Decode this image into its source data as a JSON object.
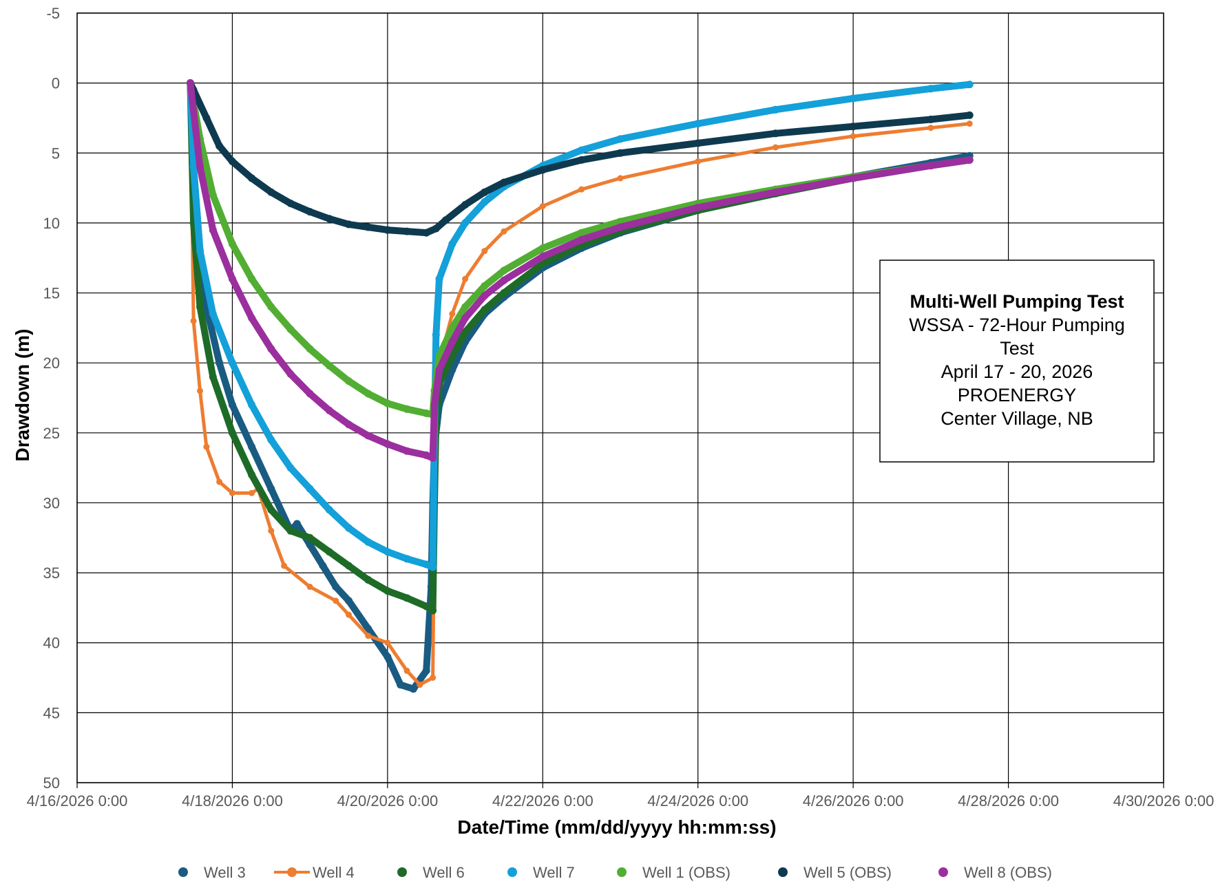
{
  "chart_data": {
    "type": "line",
    "xlabel": "Date/Time (mm/dd/yyyy hh:mm:ss)",
    "ylabel": "Drawdown (m)",
    "x_ticks": [
      "4/16/2026 0:00",
      "4/18/2026 0:00",
      "4/20/2026 0:00",
      "4/22/2026 0:00",
      "4/24/2026 0:00",
      "4/26/2026 0:00",
      "4/28/2026 0:00",
      "4/30/2026 0:00"
    ],
    "xlim": [
      "2026-04-16T00:00",
      "2026-04-30T00:00"
    ],
    "y_ticks": [
      "-5",
      "0",
      "5",
      "10",
      "15",
      "20",
      "25",
      "30",
      "35",
      "40",
      "45",
      "50"
    ],
    "ylim": [
      -5,
      50
    ],
    "y_inverted": true,
    "grid": true,
    "legend_position": "bottom",
    "annotation": {
      "title": "Multi-Well Pumping Test",
      "lines": [
        "WSSA - 72-Hour Pumping",
        "Test",
        "April 17 - 20, 2026",
        "PROENERGY",
        "Center Village, NB"
      ]
    },
    "series": [
      {
        "name": "Well 3",
        "color": "#1a5b82",
        "marker": "circle",
        "x": [
          "2026-04-17T11:00",
          "2026-04-17T12:00",
          "2026-04-17T14:00",
          "2026-04-17T16:00",
          "2026-04-17T20:00",
          "2026-04-18T00:00",
          "2026-04-18T06:00",
          "2026-04-18T12:00",
          "2026-04-18T18:00",
          "2026-04-18T20:00",
          "2026-04-19T00:00",
          "2026-04-19T04:00",
          "2026-04-19T08:00",
          "2026-04-19T12:00",
          "2026-04-19T18:00",
          "2026-04-20T00:00",
          "2026-04-20T04:00",
          "2026-04-20T08:00",
          "2026-04-20T12:00",
          "2026-04-20T13:30",
          "2026-04-20T14:00",
          "2026-04-20T14:30",
          "2026-04-20T16:00",
          "2026-04-20T20:00",
          "2026-04-21T00:00",
          "2026-04-21T06:00",
          "2026-04-21T12:00",
          "2026-04-22T00:00",
          "2026-04-22T12:00",
          "2026-04-23T00:00",
          "2026-04-24T00:00",
          "2026-04-25T00:00",
          "2026-04-26T00:00",
          "2026-04-27T00:00",
          "2026-04-27T12:00"
        ],
        "y": [
          0,
          6,
          12,
          16,
          20,
          23,
          26,
          29,
          32,
          31.5,
          33,
          34.5,
          36,
          37,
          39,
          41,
          43,
          43.3,
          42,
          36,
          30,
          26,
          23,
          20.5,
          18.5,
          16.5,
          15.3,
          13.2,
          11.8,
          10.7,
          9.1,
          7.8,
          6.7,
          5.7,
          5.2
        ]
      },
      {
        "name": "Well 4",
        "color": "#ed7d31",
        "marker": "circle",
        "x": [
          "2026-04-17T11:00",
          "2026-04-17T12:00",
          "2026-04-17T14:00",
          "2026-04-17T16:00",
          "2026-04-17T20:00",
          "2026-04-18T00:00",
          "2026-04-18T06:00",
          "2026-04-18T08:00",
          "2026-04-18T12:00",
          "2026-04-18T16:00",
          "2026-04-19T00:00",
          "2026-04-19T08:00",
          "2026-04-19T12:00",
          "2026-04-19T18:00",
          "2026-04-20T00:00",
          "2026-04-20T06:00",
          "2026-04-20T10:00",
          "2026-04-20T14:00",
          "2026-04-20T14:30",
          "2026-04-20T15:00",
          "2026-04-20T16:00",
          "2026-04-20T20:00",
          "2026-04-21T00:00",
          "2026-04-21T06:00",
          "2026-04-21T12:00",
          "2026-04-22T00:00",
          "2026-04-22T12:00",
          "2026-04-23T00:00",
          "2026-04-24T00:00",
          "2026-04-25T00:00",
          "2026-04-26T00:00",
          "2026-04-27T00:00",
          "2026-04-27T12:00"
        ],
        "y": [
          0,
          17,
          22,
          26,
          28.5,
          29.3,
          29.3,
          29,
          32,
          34.5,
          36,
          37,
          38,
          39.5,
          40,
          42,
          43,
          42.5,
          30,
          24,
          20,
          16.5,
          14,
          12,
          10.6,
          8.8,
          7.6,
          6.8,
          5.6,
          4.6,
          3.8,
          3.2,
          2.9
        ]
      },
      {
        "name": "Well 6",
        "color": "#1e6b28",
        "marker": "circle",
        "x": [
          "2026-04-17T11:00",
          "2026-04-17T12:00",
          "2026-04-17T14:00",
          "2026-04-17T18:00",
          "2026-04-18T00:00",
          "2026-04-18T06:00",
          "2026-04-18T12:00",
          "2026-04-18T18:00",
          "2026-04-19T00:00",
          "2026-04-19T06:00",
          "2026-04-19T12:00",
          "2026-04-19T18:00",
          "2026-04-20T00:00",
          "2026-04-20T06:00",
          "2026-04-20T12:00",
          "2026-04-20T14:00",
          "2026-04-20T14:30",
          "2026-04-20T15:00",
          "2026-04-20T16:00",
          "2026-04-20T20:00",
          "2026-04-21T00:00",
          "2026-04-21T06:00",
          "2026-04-21T12:00",
          "2026-04-22T00:00",
          "2026-04-22T12:00",
          "2026-04-23T00:00",
          "2026-04-24T00:00",
          "2026-04-25T00:00",
          "2026-04-26T00:00",
          "2026-04-27T00:00",
          "2026-04-27T12:00"
        ],
        "y": [
          0,
          10,
          16,
          21,
          25,
          28,
          30.5,
          32,
          32.5,
          33.5,
          34.5,
          35.5,
          36.3,
          36.8,
          37.4,
          37.7,
          30,
          24,
          21.5,
          19.5,
          17.8,
          16.2,
          15,
          12.9,
          11.6,
          10.6,
          9.1,
          7.9,
          6.8,
          5.9,
          5.5
        ]
      },
      {
        "name": "Well 7",
        "color": "#14a0d9",
        "marker": "circle",
        "x": [
          "2026-04-17T11:00",
          "2026-04-17T12:00",
          "2026-04-17T14:00",
          "2026-04-17T18:00",
          "2026-04-18T00:00",
          "2026-04-18T06:00",
          "2026-04-18T12:00",
          "2026-04-18T18:00",
          "2026-04-19T00:00",
          "2026-04-19T06:00",
          "2026-04-19T12:00",
          "2026-04-19T18:00",
          "2026-04-20T00:00",
          "2026-04-20T06:00",
          "2026-04-20T12:00",
          "2026-04-20T14:00",
          "2026-04-20T14:30",
          "2026-04-20T15:00",
          "2026-04-20T16:00",
          "2026-04-20T20:00",
          "2026-04-21T00:00",
          "2026-04-21T06:00",
          "2026-04-21T12:00",
          "2026-04-22T00:00",
          "2026-04-22T12:00",
          "2026-04-23T00:00",
          "2026-04-24T00:00",
          "2026-04-25T00:00",
          "2026-04-26T00:00",
          "2026-04-27T00:00",
          "2026-04-27T12:00"
        ],
        "y": [
          0,
          6,
          12,
          16.5,
          20,
          23,
          25.5,
          27.5,
          29,
          30.5,
          31.8,
          32.8,
          33.5,
          34,
          34.4,
          34.6,
          25,
          18,
          14,
          11.5,
          10,
          8.5,
          7.4,
          5.9,
          4.8,
          4,
          2.9,
          1.9,
          1.1,
          0.4,
          0.1
        ]
      },
      {
        "name": "Well 1 (OBS)",
        "color": "#51ae32",
        "marker": "circle",
        "x": [
          "2026-04-17T11:00",
          "2026-04-17T14:00",
          "2026-04-17T18:00",
          "2026-04-18T00:00",
          "2026-04-18T06:00",
          "2026-04-18T12:00",
          "2026-04-18T18:00",
          "2026-04-19T00:00",
          "2026-04-19T06:00",
          "2026-04-19T12:00",
          "2026-04-19T18:00",
          "2026-04-20T00:00",
          "2026-04-20T06:00",
          "2026-04-20T12:00",
          "2026-04-20T14:00",
          "2026-04-20T14:30",
          "2026-04-20T16:00",
          "2026-04-20T20:00",
          "2026-04-21T00:00",
          "2026-04-21T06:00",
          "2026-04-21T12:00",
          "2026-04-22T00:00",
          "2026-04-22T12:00",
          "2026-04-23T00:00",
          "2026-04-24T00:00",
          "2026-04-25T00:00",
          "2026-04-26T00:00",
          "2026-04-27T00:00",
          "2026-04-27T12:00"
        ],
        "y": [
          0,
          4,
          8,
          11.5,
          14,
          16,
          17.6,
          19,
          20.2,
          21.3,
          22.2,
          22.9,
          23.3,
          23.6,
          23.7,
          22,
          19.5,
          17.5,
          16,
          14.5,
          13.4,
          11.8,
          10.7,
          9.9,
          8.6,
          7.6,
          6.7,
          5.9,
          5.5
        ]
      },
      {
        "name": "Well 5 (OBS)",
        "color": "#0e3a4f",
        "marker": "circle",
        "x": [
          "2026-04-17T11:00",
          "2026-04-17T12:00",
          "2026-04-17T16:00",
          "2026-04-17T20:00",
          "2026-04-18T00:00",
          "2026-04-18T06:00",
          "2026-04-18T12:00",
          "2026-04-18T18:00",
          "2026-04-19T00:00",
          "2026-04-19T06:00",
          "2026-04-19T12:00",
          "2026-04-19T18:00",
          "2026-04-20T00:00",
          "2026-04-20T06:00",
          "2026-04-20T12:00",
          "2026-04-20T15:00",
          "2026-04-20T18:00",
          "2026-04-21T00:00",
          "2026-04-21T06:00",
          "2026-04-21T12:00",
          "2026-04-22T00:00",
          "2026-04-22T12:00",
          "2026-04-23T00:00",
          "2026-04-24T00:00",
          "2026-04-25T00:00",
          "2026-04-26T00:00",
          "2026-04-27T00:00",
          "2026-04-27T12:00"
        ],
        "y": [
          0,
          0.5,
          2.5,
          4.5,
          5.6,
          6.8,
          7.8,
          8.6,
          9.2,
          9.7,
          10.1,
          10.3,
          10.5,
          10.6,
          10.7,
          10.4,
          9.8,
          8.7,
          7.8,
          7.1,
          6.2,
          5.5,
          5,
          4.3,
          3.6,
          3.1,
          2.6,
          2.3
        ]
      },
      {
        "name": "Well 8 (OBS)",
        "color": "#9b2f9e",
        "marker": "circle",
        "x": [
          "2026-04-17T11:00",
          "2026-04-17T14:00",
          "2026-04-17T18:00",
          "2026-04-18T00:00",
          "2026-04-18T06:00",
          "2026-04-18T12:00",
          "2026-04-18T18:00",
          "2026-04-19T00:00",
          "2026-04-19T06:00",
          "2026-04-19T12:00",
          "2026-04-19T18:00",
          "2026-04-20T00:00",
          "2026-04-20T06:00",
          "2026-04-20T12:00",
          "2026-04-20T14:00",
          "2026-04-20T14:30",
          "2026-04-20T16:00",
          "2026-04-20T20:00",
          "2026-04-21T00:00",
          "2026-04-21T06:00",
          "2026-04-21T12:00",
          "2026-04-22T00:00",
          "2026-04-22T12:00",
          "2026-04-23T00:00",
          "2026-04-24T00:00",
          "2026-04-25T00:00",
          "2026-04-26T00:00",
          "2026-04-27T00:00",
          "2026-04-27T12:00"
        ],
        "y": [
          0,
          6,
          10.5,
          14,
          16.8,
          19,
          20.8,
          22.2,
          23.4,
          24.4,
          25.2,
          25.8,
          26.3,
          26.6,
          26.8,
          23,
          20.5,
          18.5,
          16.8,
          15.2,
          14.1,
          12.4,
          11.2,
          10.3,
          8.9,
          7.8,
          6.8,
          5.9,
          5.5
        ]
      }
    ]
  }
}
